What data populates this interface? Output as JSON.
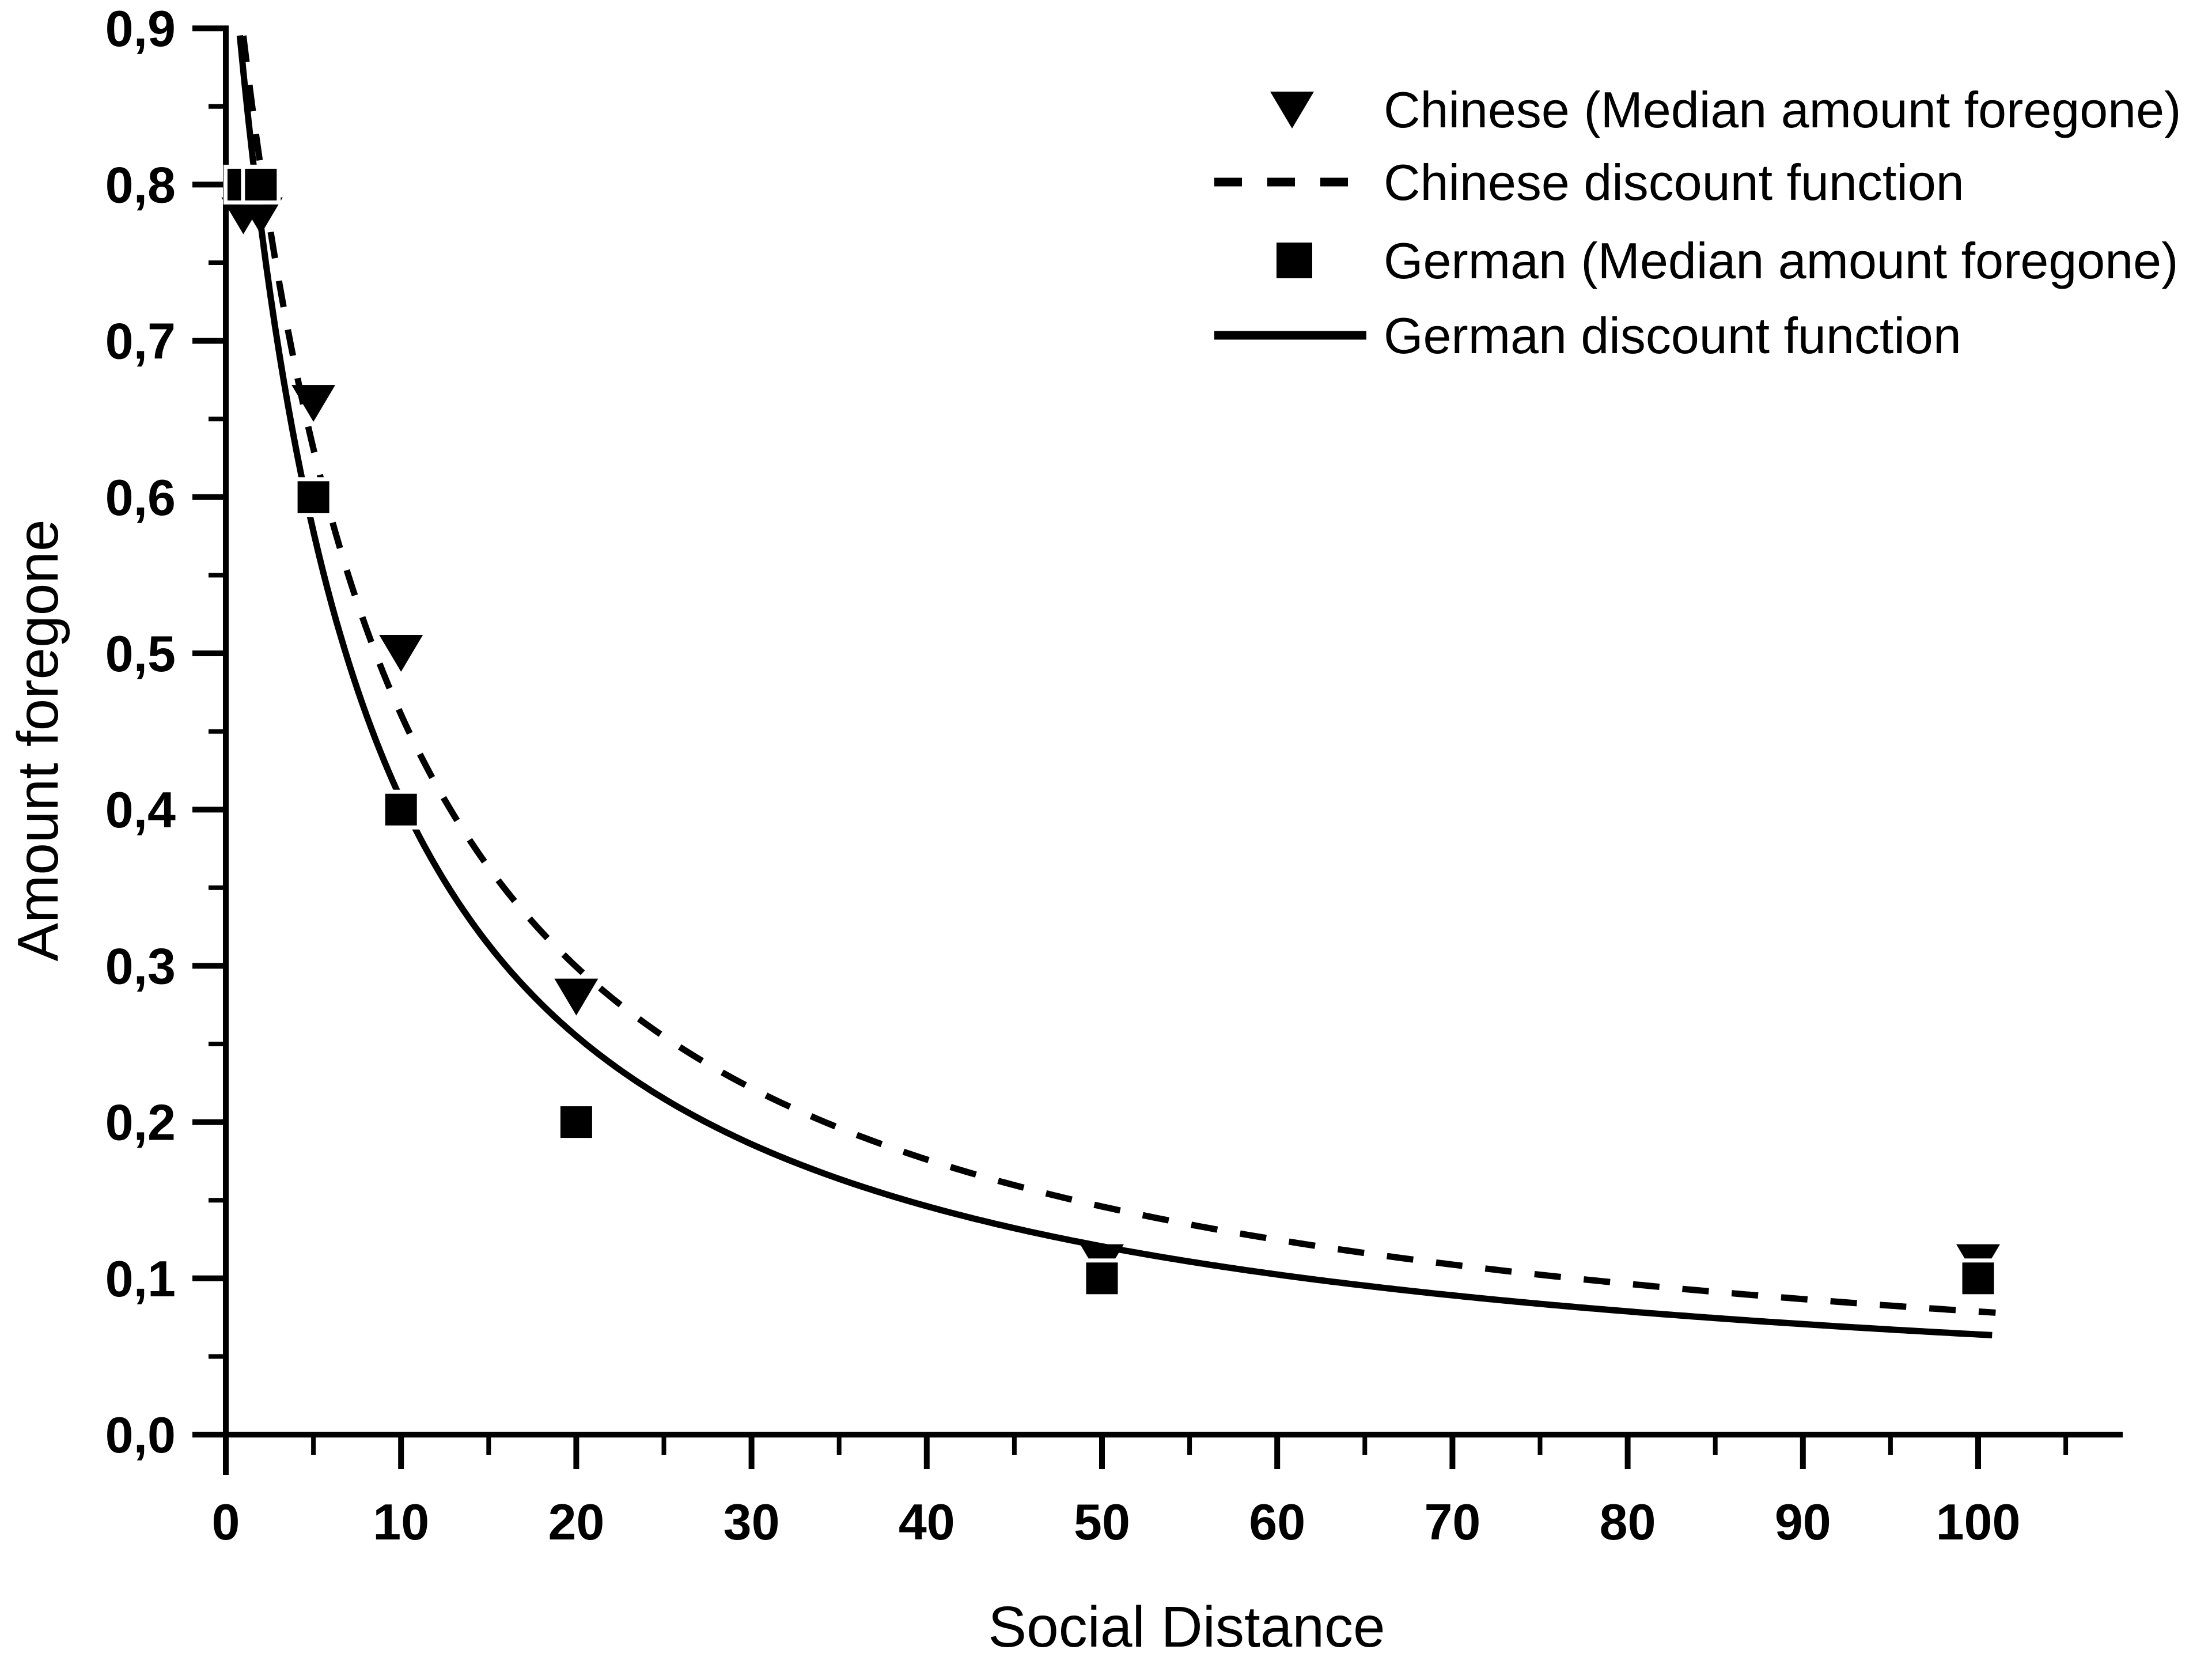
{
  "figure": {
    "background": "#ffffff",
    "foreground": "#000000"
  },
  "chart_data": {
    "type": "scatter",
    "title": "",
    "xlabel": "Social Distance",
    "ylabel": "Amount foregone",
    "xlim": [
      0,
      107
    ],
    "ylim": [
      0.0,
      0.9
    ],
    "grid": false,
    "decimal_separator": ",",
    "x_major_ticks": [
      0,
      10,
      20,
      30,
      40,
      50,
      60,
      70,
      80,
      90,
      100
    ],
    "x_tick_labels": [
      "0",
      "10",
      "20",
      "30",
      "40",
      "50",
      "60",
      "70",
      "80",
      "90",
      "100"
    ],
    "x_minor_ticks": [
      5,
      15,
      25,
      35,
      45,
      55,
      65,
      75,
      85,
      95,
      105
    ],
    "y_major_ticks": [
      0.0,
      0.1,
      0.2,
      0.3,
      0.4,
      0.5,
      0.6,
      0.7,
      0.8,
      0.9
    ],
    "y_tick_labels": [
      "0,0",
      "0,1",
      "0,2",
      "0,3",
      "0,4",
      "0,5",
      "0,6",
      "0,7",
      "0,8",
      "0,9"
    ],
    "y_minor_ticks": [
      0.05,
      0.15,
      0.25,
      0.35,
      0.45,
      0.55,
      0.65,
      0.75,
      0.85
    ],
    "series": [
      {
        "name": "Chinese (Median amount foregone)",
        "type": "scatter",
        "marker": "triangle-down",
        "color": "#000000",
        "x": [
          1,
          2,
          5,
          10,
          20,
          50,
          100
        ],
        "y": [
          0.78,
          0.78,
          0.66,
          0.5,
          0.28,
          0.11,
          0.11
        ]
      },
      {
        "name": "Chinese discount function",
        "type": "line",
        "style": "dashed",
        "color": "#000000",
        "model": "V = 1 / (1 + k·D)",
        "k": 0.117,
        "domain": [
          1.0,
          101
        ]
      },
      {
        "name": "German (Median amount foregone)",
        "type": "scatter",
        "marker": "square",
        "color": "#000000",
        "x": [
          1,
          2,
          5,
          10,
          20,
          50,
          100
        ],
        "y": [
          0.8,
          0.8,
          0.6,
          0.4,
          0.2,
          0.1,
          0.1
        ]
      },
      {
        "name": "German discount function",
        "type": "line",
        "style": "solid",
        "color": "#000000",
        "model": "V = 1 / (1 + k·D)",
        "k": 0.146,
        "domain": [
          0.8,
          101
        ]
      }
    ],
    "legend": {
      "position": "top-right"
    }
  }
}
